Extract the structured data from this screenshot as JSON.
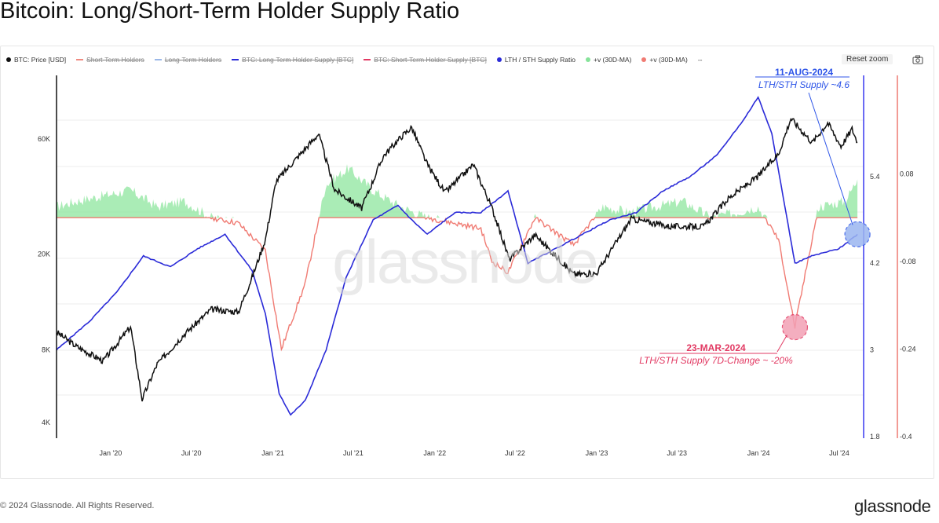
{
  "title": "Bitcoin: Long/Short-Term Holder Supply Ratio",
  "legend": [
    {
      "label": "BTC: Price [USD]",
      "color": "#111111",
      "enabled": true
    },
    {
      "label": "Short-Term Holders",
      "color": "#f08a80",
      "enabled": false
    },
    {
      "label": "Long-Term Holders",
      "color": "#9bb8e8",
      "enabled": false
    },
    {
      "label": "BTC: Long-Term Holder Supply [BTC]",
      "color": "#2b2bd8",
      "enabled": false
    },
    {
      "label": "BTC: Short-Term Holder Supply [BTC]",
      "color": "#e23a63",
      "enabled": false
    },
    {
      "label": "LTH / STH Supply Ratio",
      "color": "#2b2bd8",
      "enabled": true
    },
    {
      "label": "+v (30D-MA)",
      "color": "#86e39a",
      "enabled": true
    },
    {
      "label": "+v (30D-MA)",
      "color": "#f07b73",
      "enabled": true
    },
    {
      "label": "--",
      "color": "#888888",
      "enabled": true,
      "plain": true
    }
  ],
  "toolbar": {
    "reset_zoom": "Reset zoom",
    "camera_icon": "camera-icon"
  },
  "watermark": "glassnode",
  "footer": "© 2024 Glassnode. All Rights Reserved.",
  "brand": "glassnode",
  "colors": {
    "price": "#111111",
    "ratio": "#2b2bd8",
    "change": "#f07b73",
    "positive_fill": "#8ee59e",
    "axis_ratio": "#3a3af0",
    "axis_change": "#ee7a72"
  },
  "chart_data": {
    "type": "line",
    "x_tick_labels": [
      "Jan '20",
      "Jul '20",
      "Jan '21",
      "Jul '21",
      "Jan '22",
      "Jul '22",
      "Jan '23",
      "Jul '23",
      "Jan '24",
      "Jul '24"
    ],
    "y_left": {
      "label": "BTC: Price [USD]",
      "scale": "log",
      "ticks": [
        "4K",
        "8K",
        "20K",
        "60K"
      ],
      "tick_values": [
        4000,
        8000,
        20000,
        60000
      ]
    },
    "y_ratio": {
      "label": "LTH / STH Supply Ratio",
      "ticks": [
        "1.8",
        "3",
        "4.2",
        "5.4"
      ],
      "tick_values": [
        1.8,
        3,
        4.2,
        5.4
      ],
      "range": [
        1.8,
        6.8
      ]
    },
    "y_change": {
      "label": "7D-Change",
      "ticks": [
        "-0.4",
        "-0.24",
        "-0.08",
        "0.08"
      ],
      "tick_values": [
        -0.4,
        -0.24,
        -0.08,
        0.08
      ],
      "range": [
        -0.4,
        0.26
      ]
    },
    "series": [
      {
        "name": "BTC: Price [USD]",
        "x": [
          "2019-09-01",
          "2019-10-15",
          "2019-12-15",
          "2020-02-15",
          "2020-03-12",
          "2020-04-15",
          "2020-06-15",
          "2020-08-15",
          "2020-10-15",
          "2020-11-15",
          "2020-12-15",
          "2021-01-08",
          "2021-02-15",
          "2021-04-14",
          "2021-05-20",
          "2021-07-20",
          "2021-09-07",
          "2021-10-20",
          "2021-11-10",
          "2021-12-15",
          "2022-01-24",
          "2022-03-29",
          "2022-05-10",
          "2022-06-18",
          "2022-08-15",
          "2022-11-10",
          "2022-12-31",
          "2023-03-20",
          "2023-06-15",
          "2023-08-30",
          "2023-10-25",
          "2023-12-31",
          "2024-02-15",
          "2024-03-14",
          "2024-05-01",
          "2024-06-05",
          "2024-07-05",
          "2024-07-30",
          "2024-08-11"
        ],
        "values": [
          9500,
          8300,
          7200,
          10000,
          5000,
          7000,
          9300,
          11800,
          11500,
          16000,
          23000,
          40000,
          48000,
          63000,
          37000,
          31000,
          51000,
          62000,
          67000,
          47000,
          36000,
          47000,
          31000,
          19000,
          24000,
          16500,
          16600,
          28000,
          26000,
          26000,
          34000,
          42000,
          52000,
          73000,
          58000,
          70000,
          56000,
          66000,
          58000
        ]
      },
      {
        "name": "LTH / STH Supply Ratio",
        "x": [
          "2019-09-01",
          "2019-11-15",
          "2020-01-15",
          "2020-03-15",
          "2020-05-15",
          "2020-07-15",
          "2020-09-15",
          "2020-11-15",
          "2020-12-15",
          "2021-01-15",
          "2021-02-10",
          "2021-03-15",
          "2021-05-01",
          "2021-06-15",
          "2021-08-15",
          "2021-10-10",
          "2021-11-10",
          "2021-12-15",
          "2022-02-15",
          "2022-04-15",
          "2022-06-15",
          "2022-07-30",
          "2022-09-30",
          "2022-11-30",
          "2023-01-31",
          "2023-03-31",
          "2023-05-30",
          "2023-07-31",
          "2023-09-30",
          "2023-11-30",
          "2023-12-31",
          "2024-01-31",
          "2024-02-29",
          "2024-03-23",
          "2024-04-30",
          "2024-06-30",
          "2024-08-11"
        ],
        "values": [
          3.0,
          3.4,
          3.8,
          4.3,
          4.15,
          4.4,
          4.6,
          4.1,
          3.5,
          2.4,
          2.1,
          2.3,
          3.0,
          4.0,
          4.8,
          5.0,
          4.8,
          4.6,
          4.9,
          4.9,
          5.2,
          4.2,
          4.4,
          4.6,
          4.8,
          4.9,
          5.2,
          5.4,
          5.7,
          6.2,
          6.5,
          6.0,
          5.0,
          4.2,
          4.3,
          4.4,
          4.6
        ]
      },
      {
        "name": "+v (30D-MA)",
        "x": [
          "2019-09-01",
          "2019-10-15",
          "2019-12-15",
          "2020-02-15",
          "2020-04-15",
          "2020-06-15",
          "2020-08-15",
          "2020-10-15",
          "2020-12-15",
          "2021-01-20",
          "2021-03-15",
          "2021-04-30",
          "2021-06-20",
          "2021-08-15",
          "2021-10-15",
          "2021-12-15",
          "2022-02-15",
          "2022-04-15",
          "2022-05-10",
          "2022-06-15",
          "2022-08-15",
          "2022-11-10",
          "2023-01-15",
          "2023-03-15",
          "2023-05-15",
          "2023-07-15",
          "2023-09-15",
          "2023-11-15",
          "2023-12-31",
          "2024-02-15",
          "2024-03-23",
          "2024-05-15",
          "2024-07-15",
          "2024-08-11"
        ],
        "values": [
          0.02,
          0.03,
          0.04,
          0.05,
          0.02,
          0.03,
          0.0,
          -0.01,
          -0.06,
          -0.24,
          -0.12,
          0.06,
          0.09,
          0.05,
          0.02,
          0.0,
          -0.01,
          -0.02,
          -0.08,
          -0.1,
          0.0,
          -0.05,
          0.02,
          0.01,
          0.02,
          0.03,
          0.0,
          0.01,
          0.02,
          -0.04,
          -0.2,
          0.02,
          0.03,
          0.07
        ]
      }
    ],
    "annotations": [
      {
        "date": "11-AUG-2024",
        "text": "LTH/STH Supply ~4.6"
      },
      {
        "date": "23-MAR-2024",
        "text": "LTH/STH Supply 7D-Change ~ -20%"
      }
    ]
  }
}
